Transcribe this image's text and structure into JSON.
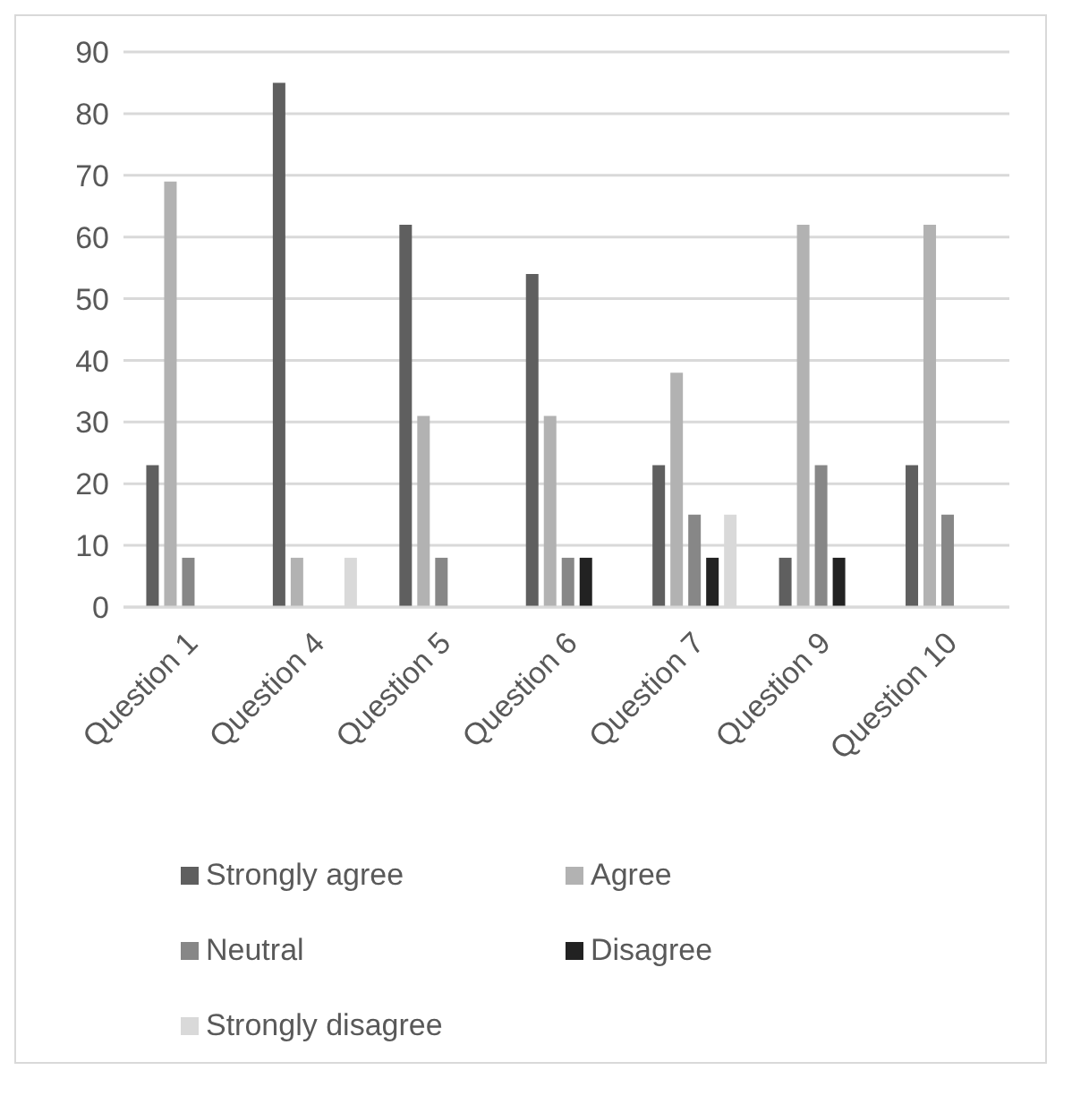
{
  "chart_data": {
    "type": "bar",
    "categories": [
      "Question 1",
      "Question 4",
      "Question 5",
      "Question 6",
      "Question 7",
      "Question 9",
      "Question 10"
    ],
    "series": [
      {
        "name": "Strongly agree",
        "color": "#5f5f5f",
        "values": [
          23,
          85,
          62,
          54,
          23,
          8,
          23
        ]
      },
      {
        "name": "Agree",
        "color": "#b2b2b2",
        "values": [
          69,
          8,
          31,
          31,
          38,
          62,
          62
        ]
      },
      {
        "name": "Neutral",
        "color": "#878787",
        "values": [
          8,
          0,
          8,
          8,
          15,
          23,
          15
        ]
      },
      {
        "name": "Disagree",
        "color": "#222222",
        "values": [
          0,
          0,
          0,
          8,
          8,
          8,
          0
        ]
      },
      {
        "name": "Strongly disagree",
        "color": "#d9d9d9",
        "values": [
          0,
          8,
          0,
          0,
          15,
          0,
          0
        ]
      }
    ],
    "ylim": [
      0,
      90
    ],
    "yticks": [
      0,
      10,
      20,
      30,
      40,
      50,
      60,
      70,
      80,
      90
    ],
    "grid": "y",
    "legend": "bottom"
  }
}
